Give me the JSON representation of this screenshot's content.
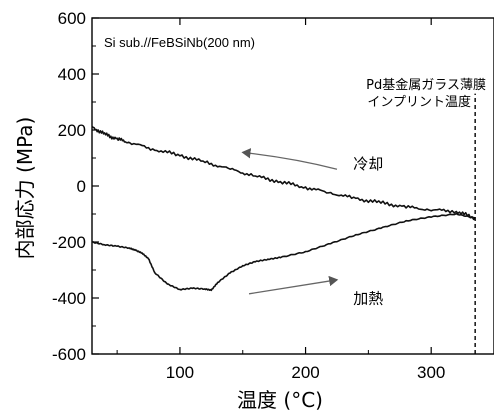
{
  "chart_data": {
    "type": "line",
    "title": "",
    "xlabel": "温度 (°C)",
    "ylabel": "内部応力 (MPa)",
    "xlim": [
      30,
      350
    ],
    "ylim": [
      -600,
      600
    ],
    "x_ticks": [
      100,
      200,
      300
    ],
    "y_ticks": [
      -600,
      -400,
      -200,
      0,
      200,
      400,
      600
    ],
    "grid": false,
    "sample_label": "Si sub.//FeBSiNb(200 nm)",
    "vline": {
      "x": 335,
      "label_line1": "Pd基金属ガラス薄膜",
      "label_line2": "インプリント温度"
    },
    "series": [
      {
        "name": "冷却",
        "x": [
          30,
          40,
          50,
          60,
          80,
          100,
          120,
          140,
          160,
          180,
          200,
          220,
          240,
          260,
          280,
          300,
          320,
          335
        ],
        "y": [
          210,
          185,
          168,
          155,
          130,
          110,
          85,
          60,
          35,
          15,
          -5,
          -25,
          -45,
          -60,
          -75,
          -85,
          -90,
          -115
        ]
      },
      {
        "name": "加熱",
        "x": [
          30,
          40,
          50,
          60,
          65,
          70,
          75,
          80,
          90,
          100,
          110,
          120,
          125,
          130,
          140,
          150,
          160,
          170,
          180,
          200,
          220,
          240,
          260,
          280,
          300,
          320,
          335
        ],
        "y": [
          -200,
          -210,
          -215,
          -222,
          -230,
          -240,
          -260,
          -310,
          -350,
          -370,
          -365,
          -368,
          -372,
          -345,
          -310,
          -285,
          -270,
          -262,
          -255,
          -235,
          -205,
          -175,
          -150,
          -125,
          -110,
          -100,
          -115
        ]
      }
    ],
    "annotations": [
      {
        "text": "冷却",
        "x": 238,
        "y": 60
      },
      {
        "text": "加熱",
        "x": 238,
        "y": -420
      }
    ]
  }
}
